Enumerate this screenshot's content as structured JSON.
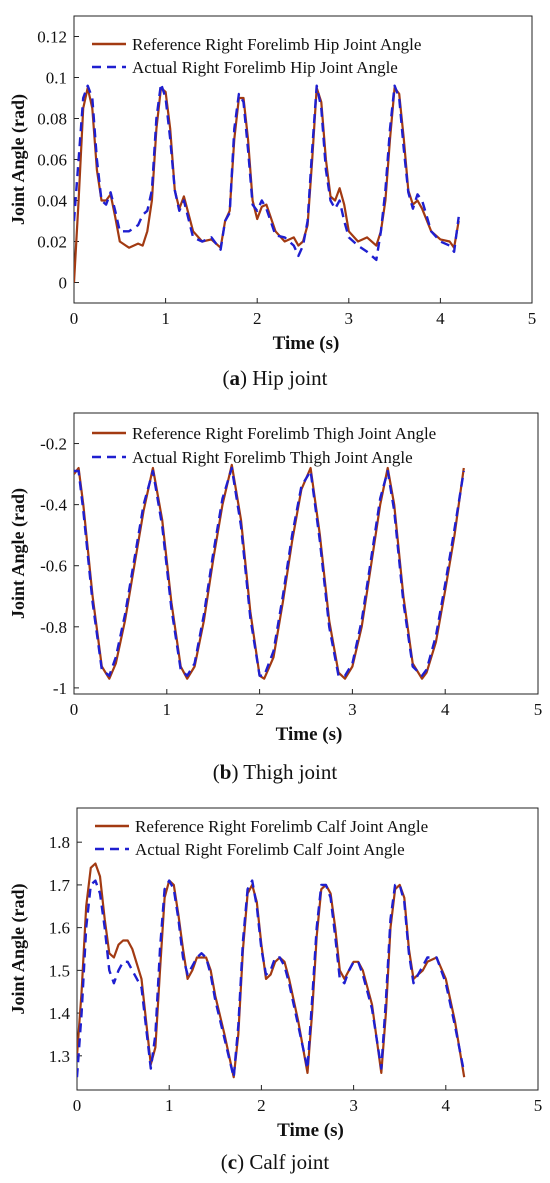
{
  "colors": {
    "reference": "#a23a12",
    "actual": "#1f1fd0",
    "axis": "#222222",
    "background": "#ffffff"
  },
  "chart_data": [
    {
      "type": "line",
      "caption_letter": "a",
      "caption_text": " Hip joint",
      "xlabel": "Time (s)",
      "ylabel": "Joint Angle (rad)",
      "xlim": [
        0,
        5
      ],
      "ylim": [
        -0.01,
        0.13
      ],
      "xticks": [
        0,
        1,
        2,
        3,
        4,
        5
      ],
      "yticks": [
        0,
        0.02,
        0.04,
        0.06,
        0.08,
        0.1,
        0.12
      ],
      "ytick_labels": [
        "0",
        "0.02",
        "0.04",
        "0.06",
        "0.08",
        "0.1",
        "0.12"
      ],
      "grid": false,
      "legend_position": "top-left",
      "series": [
        {
          "name": "Reference Right Forelimb Hip Joint Angle",
          "style": "solid",
          "x": [
            0,
            0.05,
            0.1,
            0.15,
            0.2,
            0.25,
            0.3,
            0.35,
            0.4,
            0.45,
            0.5,
            0.6,
            0.7,
            0.75,
            0.8,
            0.85,
            0.9,
            0.95,
            1.0,
            1.05,
            1.1,
            1.15,
            1.2,
            1.3,
            1.4,
            1.5,
            1.6,
            1.65,
            1.7,
            1.75,
            1.8,
            1.85,
            1.9,
            1.95,
            2.0,
            2.05,
            2.1,
            2.2,
            2.3,
            2.4,
            2.45,
            2.5,
            2.55,
            2.6,
            2.65,
            2.7,
            2.75,
            2.8,
            2.85,
            2.9,
            2.95,
            3.0,
            3.1,
            3.2,
            3.3,
            3.35,
            3.4,
            3.45,
            3.5,
            3.55,
            3.6,
            3.65,
            3.7,
            3.75,
            3.8,
            3.9,
            4.0,
            4.1,
            4.15,
            4.2
          ],
          "values": [
            0.0,
            0.04,
            0.085,
            0.095,
            0.085,
            0.055,
            0.04,
            0.04,
            0.043,
            0.032,
            0.02,
            0.017,
            0.019,
            0.018,
            0.025,
            0.04,
            0.075,
            0.095,
            0.093,
            0.075,
            0.045,
            0.036,
            0.042,
            0.025,
            0.02,
            0.021,
            0.017,
            0.03,
            0.035,
            0.07,
            0.09,
            0.09,
            0.07,
            0.04,
            0.031,
            0.037,
            0.038,
            0.025,
            0.02,
            0.022,
            0.018,
            0.02,
            0.028,
            0.06,
            0.095,
            0.088,
            0.06,
            0.042,
            0.04,
            0.046,
            0.038,
            0.025,
            0.02,
            0.022,
            0.018,
            0.025,
            0.04,
            0.07,
            0.095,
            0.092,
            0.07,
            0.045,
            0.038,
            0.04,
            0.036,
            0.025,
            0.021,
            0.02,
            0.017,
            0.03
          ]
        },
        {
          "name": "Actual Right Forelimb Hip Joint Angle",
          "style": "dashed",
          "x": [
            0,
            0.05,
            0.1,
            0.15,
            0.2,
            0.25,
            0.3,
            0.35,
            0.4,
            0.45,
            0.5,
            0.6,
            0.7,
            0.75,
            0.8,
            0.85,
            0.9,
            0.95,
            1.0,
            1.05,
            1.1,
            1.15,
            1.2,
            1.3,
            1.4,
            1.5,
            1.6,
            1.65,
            1.7,
            1.75,
            1.8,
            1.85,
            1.9,
            1.95,
            2.0,
            2.05,
            2.1,
            2.2,
            2.3,
            2.4,
            2.45,
            2.5,
            2.55,
            2.6,
            2.65,
            2.7,
            2.75,
            2.8,
            2.85,
            2.9,
            2.95,
            3.0,
            3.1,
            3.2,
            3.3,
            3.35,
            3.4,
            3.45,
            3.5,
            3.55,
            3.6,
            3.65,
            3.7,
            3.75,
            3.8,
            3.9,
            4.0,
            4.1,
            4.15,
            4.2
          ],
          "values": [
            0.03,
            0.06,
            0.09,
            0.096,
            0.09,
            0.06,
            0.04,
            0.038,
            0.044,
            0.035,
            0.025,
            0.025,
            0.028,
            0.033,
            0.035,
            0.045,
            0.08,
            0.097,
            0.09,
            0.07,
            0.045,
            0.035,
            0.04,
            0.022,
            0.02,
            0.022,
            0.016,
            0.03,
            0.034,
            0.075,
            0.092,
            0.088,
            0.065,
            0.038,
            0.035,
            0.04,
            0.036,
            0.023,
            0.022,
            0.018,
            0.013,
            0.018,
            0.03,
            0.065,
            0.096,
            0.085,
            0.055,
            0.04,
            0.036,
            0.04,
            0.03,
            0.022,
            0.018,
            0.015,
            0.011,
            0.025,
            0.045,
            0.075,
            0.096,
            0.09,
            0.065,
            0.044,
            0.036,
            0.043,
            0.04,
            0.025,
            0.02,
            0.018,
            0.015,
            0.032
          ]
        }
      ]
    },
    {
      "type": "line",
      "caption_letter": "b",
      "caption_text": " Thigh joint",
      "xlabel": "Time (s)",
      "ylabel": "Joint Angle (rad)",
      "xlim": [
        0,
        5
      ],
      "ylim": [
        -1.02,
        -0.1
      ],
      "xticks": [
        0,
        1,
        2,
        3,
        4,
        5
      ],
      "yticks": [
        -1,
        -0.8,
        -0.6,
        -0.4,
        -0.2
      ],
      "ytick_labels": [
        "-1",
        "-0.8",
        "-0.6",
        "-0.4",
        "-0.2"
      ],
      "grid": false,
      "legend_position": "top-center",
      "series": [
        {
          "name": "Reference Right Forelimb Thigh Joint Angle",
          "style": "solid",
          "x": [
            0,
            0.05,
            0.1,
            0.2,
            0.3,
            0.38,
            0.45,
            0.55,
            0.65,
            0.75,
            0.85,
            0.95,
            1.05,
            1.15,
            1.22,
            1.3,
            1.4,
            1.5,
            1.6,
            1.7,
            1.8,
            1.9,
            2.0,
            2.05,
            2.15,
            2.25,
            2.35,
            2.45,
            2.55,
            2.65,
            2.75,
            2.85,
            2.92,
            3.0,
            3.1,
            3.2,
            3.3,
            3.38,
            3.45,
            3.55,
            3.65,
            3.75,
            3.8,
            3.9,
            4.0,
            4.1,
            4.2
          ],
          "values": [
            -0.3,
            -0.28,
            -0.4,
            -0.7,
            -0.93,
            -0.97,
            -0.92,
            -0.78,
            -0.6,
            -0.42,
            -0.28,
            -0.45,
            -0.72,
            -0.93,
            -0.97,
            -0.93,
            -0.78,
            -0.58,
            -0.4,
            -0.27,
            -0.45,
            -0.75,
            -0.96,
            -0.97,
            -0.9,
            -0.72,
            -0.52,
            -0.35,
            -0.28,
            -0.5,
            -0.78,
            -0.95,
            -0.97,
            -0.93,
            -0.8,
            -0.6,
            -0.4,
            -0.28,
            -0.4,
            -0.7,
            -0.92,
            -0.97,
            -0.95,
            -0.85,
            -0.68,
            -0.5,
            -0.28
          ]
        },
        {
          "name": "Actual Right Forelimb Thigh Joint Angle",
          "style": "dashed",
          "x": [
            0,
            0.05,
            0.1,
            0.2,
            0.3,
            0.38,
            0.45,
            0.55,
            0.65,
            0.75,
            0.85,
            0.95,
            1.05,
            1.15,
            1.22,
            1.3,
            1.4,
            1.5,
            1.6,
            1.7,
            1.8,
            1.9,
            2.0,
            2.05,
            2.15,
            2.25,
            2.35,
            2.45,
            2.55,
            2.65,
            2.75,
            2.85,
            2.92,
            3.0,
            3.1,
            3.2,
            3.3,
            3.38,
            3.45,
            3.55,
            3.65,
            3.75,
            3.8,
            3.9,
            4.0,
            4.1,
            4.2
          ],
          "values": [
            -0.29,
            -0.29,
            -0.42,
            -0.72,
            -0.94,
            -0.96,
            -0.9,
            -0.76,
            -0.58,
            -0.4,
            -0.29,
            -0.47,
            -0.74,
            -0.94,
            -0.96,
            -0.92,
            -0.76,
            -0.56,
            -0.38,
            -0.28,
            -0.47,
            -0.77,
            -0.96,
            -0.96,
            -0.88,
            -0.7,
            -0.5,
            -0.34,
            -0.29,
            -0.52,
            -0.8,
            -0.96,
            -0.96,
            -0.92,
            -0.78,
            -0.58,
            -0.38,
            -0.29,
            -0.42,
            -0.72,
            -0.93,
            -0.96,
            -0.94,
            -0.83,
            -0.66,
            -0.48,
            -0.29
          ]
        }
      ]
    },
    {
      "type": "line",
      "caption_letter": "c",
      "caption_text": " Calf joint",
      "xlabel": "Time (s)",
      "ylabel": "Joint Angle (rad)",
      "xlim": [
        0,
        5
      ],
      "ylim": [
        1.22,
        1.88
      ],
      "xticks": [
        0,
        1,
        2,
        3,
        4,
        5
      ],
      "yticks": [
        1.3,
        1.4,
        1.5,
        1.6,
        1.7,
        1.8
      ],
      "ytick_labels": [
        "1.3",
        "1.4",
        "1.5",
        "1.6",
        "1.7",
        "1.8"
      ],
      "grid": false,
      "legend_position": "top-left",
      "series": [
        {
          "name": "Reference Right Forelimb Calf Joint Angle",
          "style": "solid",
          "x": [
            0,
            0.05,
            0.1,
            0.15,
            0.2,
            0.25,
            0.3,
            0.35,
            0.4,
            0.45,
            0.5,
            0.55,
            0.6,
            0.7,
            0.8,
            0.85,
            0.9,
            0.95,
            1.0,
            1.05,
            1.1,
            1.15,
            1.2,
            1.25,
            1.3,
            1.35,
            1.4,
            1.45,
            1.5,
            1.6,
            1.7,
            1.75,
            1.8,
            1.85,
            1.9,
            1.95,
            2.0,
            2.05,
            2.1,
            2.15,
            2.2,
            2.25,
            2.3,
            2.4,
            2.5,
            2.55,
            2.6,
            2.65,
            2.7,
            2.75,
            2.8,
            2.85,
            2.9,
            2.95,
            3.0,
            3.05,
            3.1,
            3.2,
            3.3,
            3.35,
            3.4,
            3.45,
            3.5,
            3.55,
            3.6,
            3.65,
            3.7,
            3.75,
            3.8,
            3.9,
            4.0,
            4.1,
            4.2
          ],
          "values": [
            1.3,
            1.45,
            1.65,
            1.74,
            1.75,
            1.72,
            1.62,
            1.54,
            1.53,
            1.56,
            1.57,
            1.57,
            1.55,
            1.48,
            1.28,
            1.32,
            1.5,
            1.67,
            1.71,
            1.7,
            1.63,
            1.55,
            1.48,
            1.5,
            1.53,
            1.53,
            1.53,
            1.5,
            1.44,
            1.35,
            1.25,
            1.35,
            1.55,
            1.68,
            1.7,
            1.66,
            1.56,
            1.48,
            1.49,
            1.52,
            1.53,
            1.52,
            1.48,
            1.38,
            1.26,
            1.4,
            1.58,
            1.69,
            1.7,
            1.68,
            1.6,
            1.5,
            1.48,
            1.5,
            1.52,
            1.52,
            1.5,
            1.42,
            1.26,
            1.4,
            1.6,
            1.69,
            1.7,
            1.67,
            1.55,
            1.48,
            1.49,
            1.5,
            1.52,
            1.53,
            1.48,
            1.38,
            1.25
          ]
        },
        {
          "name": "Actual Right Forelimb Calf Joint Angle",
          "style": "dashed",
          "x": [
            0,
            0.05,
            0.1,
            0.15,
            0.2,
            0.25,
            0.3,
            0.35,
            0.4,
            0.45,
            0.5,
            0.55,
            0.6,
            0.7,
            0.8,
            0.85,
            0.9,
            0.95,
            1.0,
            1.05,
            1.1,
            1.15,
            1.2,
            1.25,
            1.3,
            1.35,
            1.4,
            1.45,
            1.5,
            1.6,
            1.7,
            1.75,
            1.8,
            1.85,
            1.9,
            1.95,
            2.0,
            2.05,
            2.1,
            2.15,
            2.2,
            2.25,
            2.3,
            2.4,
            2.5,
            2.55,
            2.6,
            2.65,
            2.7,
            2.75,
            2.8,
            2.85,
            2.9,
            2.95,
            3.0,
            3.05,
            3.1,
            3.2,
            3.3,
            3.35,
            3.4,
            3.45,
            3.5,
            3.55,
            3.6,
            3.65,
            3.7,
            3.75,
            3.8,
            3.9,
            4.0,
            4.1,
            4.2
          ],
          "values": [
            1.25,
            1.4,
            1.6,
            1.7,
            1.71,
            1.68,
            1.6,
            1.5,
            1.47,
            1.5,
            1.52,
            1.52,
            1.5,
            1.46,
            1.27,
            1.35,
            1.55,
            1.69,
            1.71,
            1.69,
            1.62,
            1.53,
            1.49,
            1.51,
            1.53,
            1.54,
            1.53,
            1.49,
            1.43,
            1.34,
            1.25,
            1.37,
            1.57,
            1.69,
            1.71,
            1.65,
            1.55,
            1.49,
            1.5,
            1.53,
            1.53,
            1.51,
            1.47,
            1.37,
            1.27,
            1.43,
            1.6,
            1.7,
            1.7,
            1.67,
            1.58,
            1.48,
            1.47,
            1.5,
            1.52,
            1.52,
            1.49,
            1.41,
            1.27,
            1.43,
            1.62,
            1.7,
            1.7,
            1.66,
            1.54,
            1.47,
            1.49,
            1.51,
            1.53,
            1.53,
            1.47,
            1.37,
            1.26
          ]
        }
      ]
    }
  ]
}
